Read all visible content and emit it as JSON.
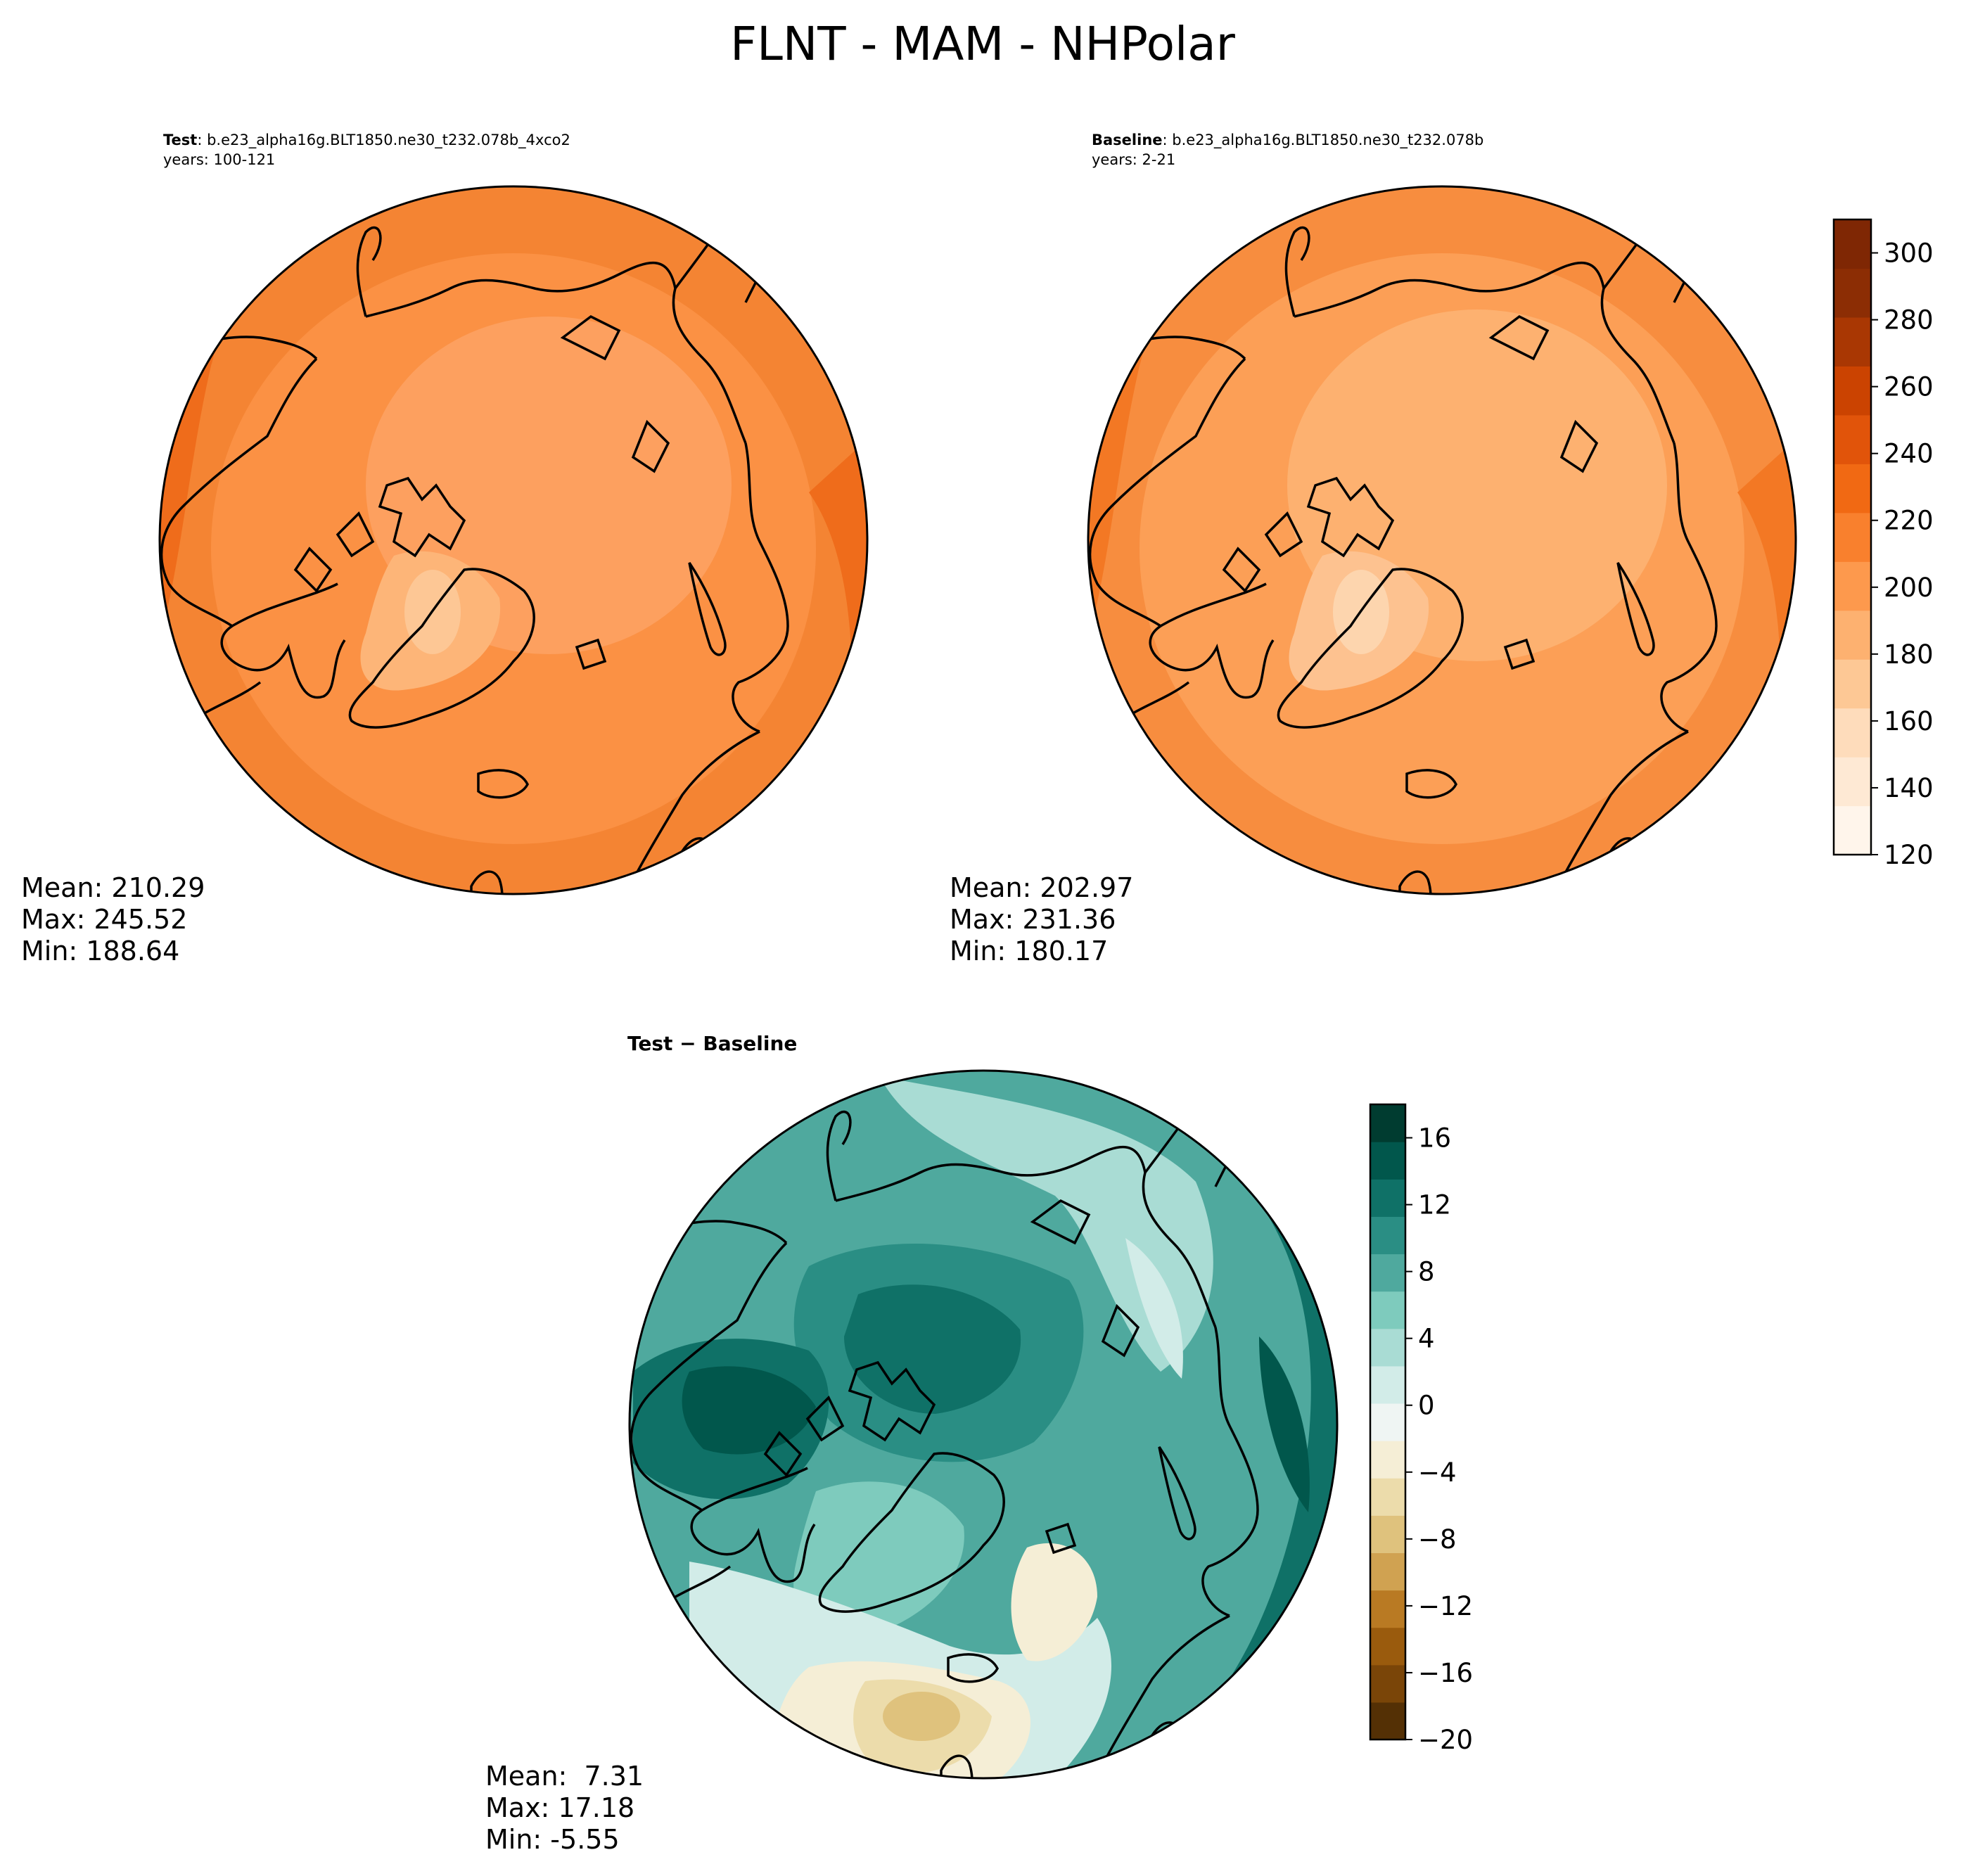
{
  "figure": {
    "title": "FLNT - MAM - NHPolar"
  },
  "panels": [
    {
      "id": "test",
      "title_bold": "Test",
      "title_rest": ": b.e23_alpha16g.BLT1850.ne30_t232.078b_4xco2",
      "subtitle": "years: 100-121",
      "stats": {
        "mean": "Mean: 210.29",
        "max": "Max: 245.52",
        "min": "Min: 188.64"
      }
    },
    {
      "id": "baseline",
      "title_bold": "Baseline",
      "title_rest": ": b.e23_alpha16g.BLT1850.ne30_t232.078b",
      "subtitle": "years: 2-21",
      "stats": {
        "mean": "Mean: 202.97",
        "max": "Max: 231.36",
        "min": "Min: 180.17"
      }
    },
    {
      "id": "diff",
      "title_bold": "Test − Baseline",
      "title_rest": "",
      "subtitle": "",
      "stats": {
        "mean": "Mean:  7.31",
        "max": "Max: 17.18",
        "min": "Min: -5.55"
      }
    }
  ],
  "colorbars": {
    "field": {
      "colormap": "Oranges",
      "range": [
        120,
        310
      ],
      "ticks": [
        "120",
        "140",
        "160",
        "180",
        "200",
        "220",
        "240",
        "260",
        "280",
        "300"
      ],
      "colors": [
        "#fff5eb",
        "#fee9d4",
        "#fedcbb",
        "#fdc895",
        "#fdb170",
        "#fd994d",
        "#f9802d",
        "#f16913",
        "#e1540a",
        "#cb4301",
        "#a93703",
        "#8c2d04",
        "#7f2704"
      ]
    },
    "difference": {
      "colormap": "BrBG",
      "range": [
        -20,
        18
      ],
      "ticks": [
        "−20",
        "−16",
        "−12",
        "−8",
        "−4",
        "0",
        "4",
        "8",
        "12",
        "16"
      ],
      "colors": [
        "#543005",
        "#7a4508",
        "#9a5b0d",
        "#b97a23",
        "#d0a251",
        "#dfc27d",
        "#ecdcab",
        "#f5eed6",
        "#eff5f3",
        "#d2ece8",
        "#a9dcd4",
        "#7ecbbd",
        "#4fa99e",
        "#2a8e84",
        "#0f7167",
        "#01574c",
        "#003c30"
      ]
    }
  },
  "maps": {
    "test_levels": {
      "outer_ring": "#f48433",
      "mid_ring": "#fb9144",
      "arctic_ocean": "#fda05f",
      "greenland": "#fdb578",
      "greenland_core": "#fdc795",
      "southeast_warm": "#ef6c1b"
    },
    "baseline_levels": {
      "outer_ring": "#f78d3f",
      "mid_ring": "#fc9f56",
      "arctic_ocean": "#fdb170",
      "greenland": "#fdc290",
      "greenland_core": "#fdd5ae",
      "southeast_warm": "#f37824"
    },
    "diff_levels": {
      "base": "#4fa99e",
      "strong_nw": "#01574c",
      "canada": "#0f7167",
      "arctic": "#2a8e84",
      "pacific": "#0f7167",
      "siberia_light": "#a9dcd4",
      "greenland": "#7ecbbd",
      "atlantic_light": "#d2ece8",
      "europe": "#ecdcab",
      "europe_core": "#dfc27d",
      "scandinavia": "#f5eed6"
    }
  }
}
